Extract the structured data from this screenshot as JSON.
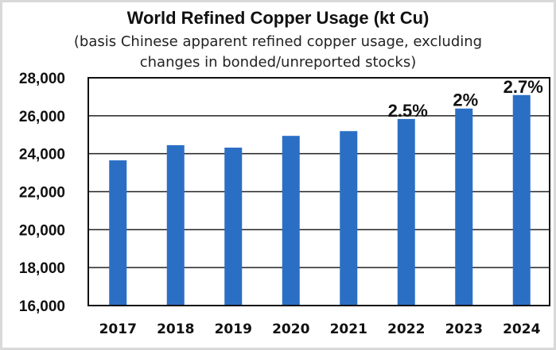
{
  "chart_data": {
    "type": "bar",
    "title": "World Refined Copper Usage (kt Cu)",
    "subtitle_lines": [
      "(basis Chinese apparent refined copper usage, excluding",
      "changes in bonded/unreported stocks)"
    ],
    "xlabel": "",
    "ylabel": "",
    "categories": [
      "2017",
      "2018",
      "2019",
      "2020",
      "2021",
      "2022",
      "2023",
      "2024"
    ],
    "values": [
      23650,
      24450,
      24320,
      24940,
      25190,
      25830,
      26380,
      27090
    ],
    "data_labels": [
      "",
      "",
      "",
      "",
      "",
      "2.5%",
      "2%",
      "2.7%"
    ],
    "ylim": [
      16000,
      28000
    ],
    "yticks": [
      16000,
      18000,
      20000,
      22000,
      24000,
      26000,
      28000
    ],
    "ytick_labels": [
      "16,000",
      "18,000",
      "20,000",
      "22,000",
      "24,000",
      "26,000",
      "28,000"
    ],
    "grid": true,
    "legend": "none",
    "bar_color": "#2a6fc4"
  }
}
